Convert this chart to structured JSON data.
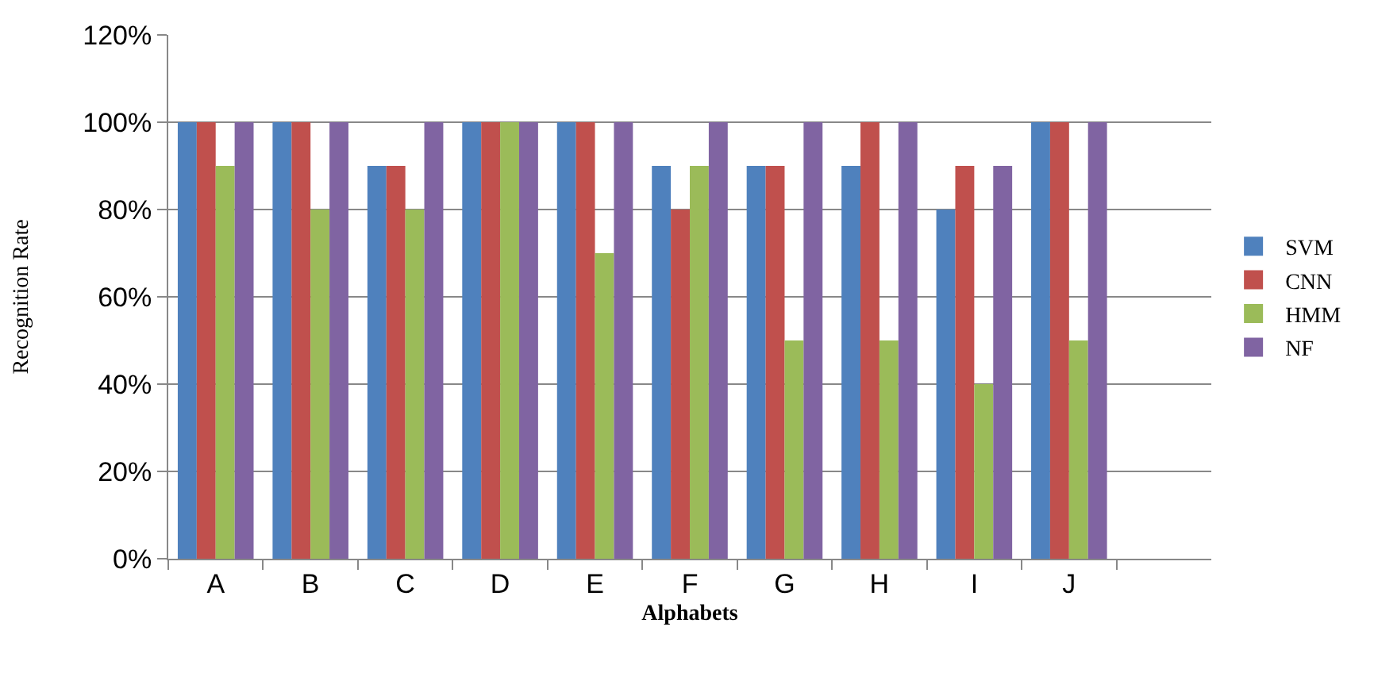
{
  "chart_data": {
    "type": "bar",
    "xlabel": "Alphabets",
    "ylabel": "Recognition Rate",
    "categories": [
      "A",
      "B",
      "C",
      "D",
      "E",
      "F",
      "G",
      "H",
      "I",
      "J",
      null
    ],
    "series": [
      {
        "name": "SVM",
        "color": "#4f81bd",
        "values": [
          100,
          100,
          90,
          100,
          100,
          90,
          90,
          90,
          80,
          100,
          null
        ]
      },
      {
        "name": "CNN",
        "color": "#c0504d",
        "values": [
          100,
          100,
          90,
          100,
          100,
          80,
          90,
          100,
          90,
          100,
          null
        ]
      },
      {
        "name": "HMM",
        "color": "#9bbb59",
        "values": [
          90,
          80,
          80,
          100,
          70,
          90,
          50,
          50,
          40,
          50,
          null
        ]
      },
      {
        "name": "NF",
        "color": "#8064a2",
        "values": [
          100,
          100,
          100,
          100,
          100,
          100,
          100,
          100,
          90,
          100,
          null
        ]
      }
    ],
    "ylim": [
      0,
      120
    ],
    "yticks": [
      {
        "value": 0,
        "label": "0%"
      },
      {
        "value": 20,
        "label": "20%"
      },
      {
        "value": 40,
        "label": "40%"
      },
      {
        "value": 60,
        "label": "60%"
      },
      {
        "value": 80,
        "label": "80%"
      },
      {
        "value": 100,
        "label": "100%"
      },
      {
        "value": 120,
        "label": "120%"
      }
    ],
    "grid": "y",
    "legend": "right"
  }
}
